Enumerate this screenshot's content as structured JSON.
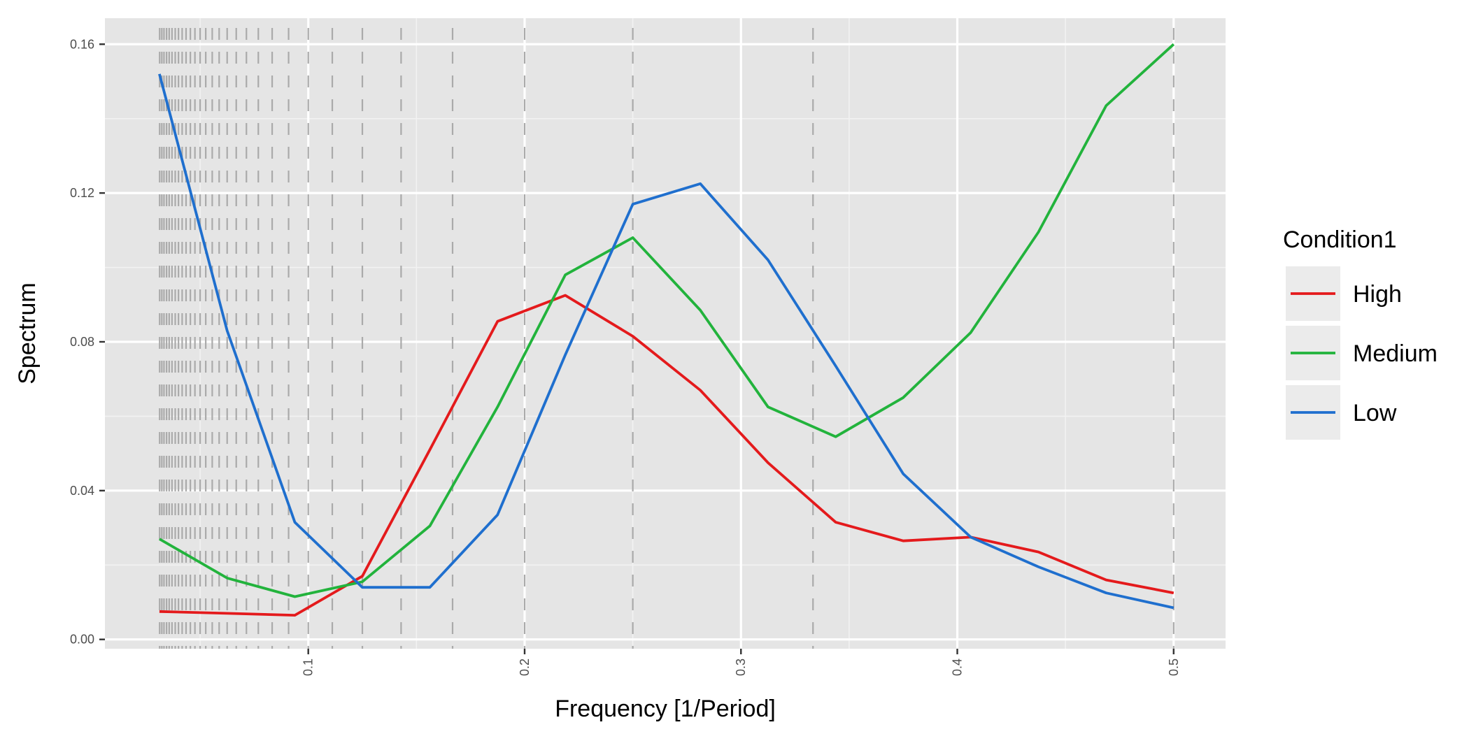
{
  "chart_data": {
    "type": "line",
    "xlabel": "Frequency [1/Period]",
    "ylabel": "Spectrum",
    "xlim": [
      0.006,
      0.524
    ],
    "ylim": [
      -0.0025,
      0.167
    ],
    "x_ticks": [
      0.1,
      0.2,
      0.3,
      0.4,
      0.5
    ],
    "x_tick_labels": [
      "0.1",
      "0.2",
      "0.3",
      "0.4",
      "0.5"
    ],
    "y_ticks": [
      0.0,
      0.04,
      0.08,
      0.12,
      0.16
    ],
    "y_tick_labels": [
      "0.00",
      "0.04",
      "0.08",
      "0.12",
      "0.16"
    ],
    "grid": true,
    "legend": {
      "title": "Condition1",
      "position": "right",
      "entries": [
        "High",
        "Medium",
        "Low"
      ]
    },
    "series": [
      {
        "name": "High",
        "color": "#e41a1c",
        "x": [
          0.0312,
          0.0625,
          0.0938,
          0.125,
          0.1562,
          0.1875,
          0.2188,
          0.25,
          0.2812,
          0.3125,
          0.3438,
          0.375,
          0.4062,
          0.4375,
          0.4688,
          0.5
        ],
        "y": [
          0.0075,
          0.007,
          0.0065,
          0.017,
          0.051,
          0.0855,
          0.0925,
          0.0815,
          0.067,
          0.0475,
          0.0315,
          0.0265,
          0.0275,
          0.0235,
          0.016,
          0.0125
        ]
      },
      {
        "name": "Medium",
        "color": "#22b33c",
        "x": [
          0.0312,
          0.0625,
          0.0938,
          0.125,
          0.1562,
          0.1875,
          0.2188,
          0.25,
          0.2812,
          0.3125,
          0.3438,
          0.375,
          0.4062,
          0.4375,
          0.4688,
          0.5
        ],
        "y": [
          0.027,
          0.0165,
          0.0115,
          0.0155,
          0.0305,
          0.0625,
          0.098,
          0.108,
          0.0885,
          0.0625,
          0.0545,
          0.065,
          0.0825,
          0.1095,
          0.1435,
          0.16
        ]
      },
      {
        "name": "Low",
        "color": "#1f6fce",
        "x": [
          0.0312,
          0.0625,
          0.0938,
          0.125,
          0.1562,
          0.1875,
          0.2188,
          0.25,
          0.2812,
          0.3125,
          0.3438,
          0.375,
          0.4062,
          0.4375,
          0.4688,
          0.5
        ],
        "y": [
          0.152,
          0.083,
          0.0315,
          0.014,
          0.014,
          0.0335,
          0.0765,
          0.117,
          0.1225,
          0.102,
          0.0735,
          0.0445,
          0.0275,
          0.0195,
          0.0125,
          0.0085
        ]
      }
    ],
    "vertical_reference_lines": {
      "style": "dashed",
      "color": "#aaaaaa",
      "x": [
        0.5,
        0.3333,
        0.25,
        0.2,
        0.1667,
        0.1429,
        0.125,
        0.1111,
        0.1,
        0.0909,
        0.0833,
        0.0769,
        0.0714,
        0.0667,
        0.0625,
        0.0588,
        0.0556,
        0.0526,
        0.05,
        0.0476,
        0.0455,
        0.0435,
        0.0417,
        0.04,
        0.0385,
        0.037,
        0.0357,
        0.0345,
        0.0333,
        0.0323,
        0.0313
      ]
    }
  }
}
